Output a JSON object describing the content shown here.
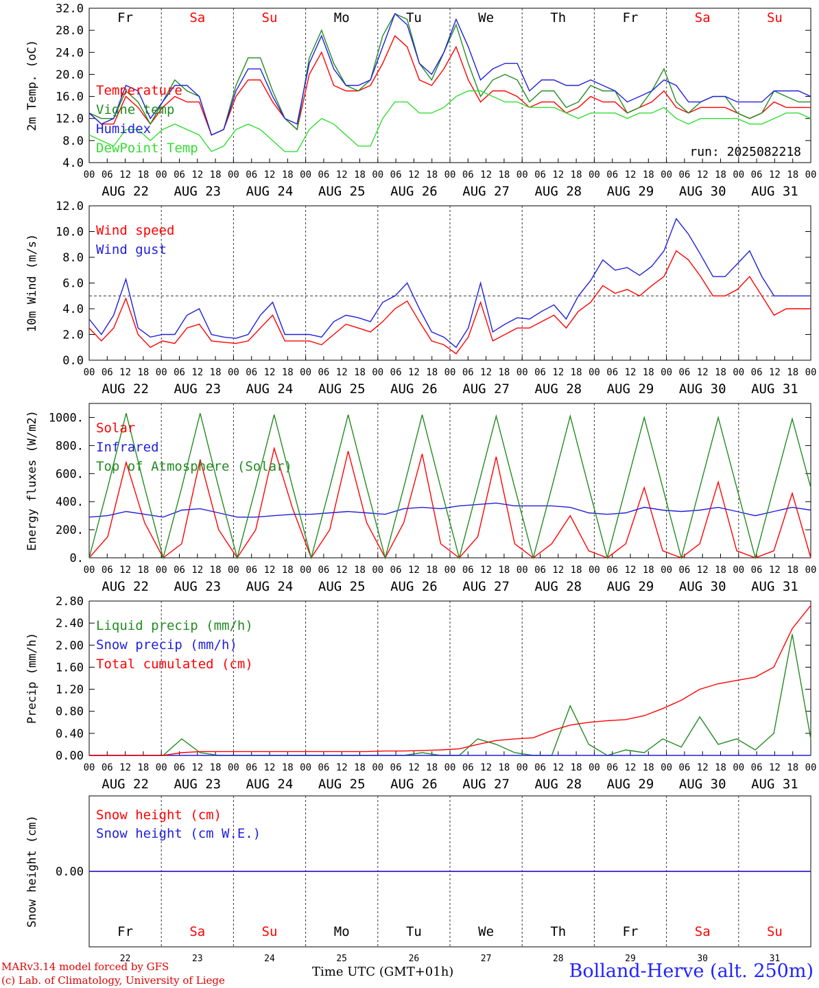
{
  "run_label": "run: 2025082218",
  "footer": {
    "credit_line1": "MARv3.14 model forced by GFS",
    "credit_line2": "(c) Lab. of Climatology, University of Liege",
    "time_label": "Time UTC (GMT+01h)",
    "station": "Bolland-Herve (alt. 250m)"
  },
  "colors": {
    "red": "#ff0000",
    "dark_green": "#228b22",
    "blue": "#1f1fdd",
    "light_green": "#33dd33",
    "grid": "#555555"
  },
  "days": [
    "AUG 22",
    "AUG 23",
    "AUG 24",
    "AUG 25",
    "AUG 26",
    "AUG 27",
    "AUG 28",
    "AUG 29",
    "AUG 30",
    "AUG 31"
  ],
  "weekdays": [
    "Fr",
    "Sa",
    "Su",
    "Mo",
    "Tu",
    "We",
    "Th",
    "Fr",
    "Sa",
    "Su"
  ],
  "weekend": [
    false,
    true,
    true,
    false,
    false,
    false,
    false,
    false,
    true,
    true
  ],
  "day_numbers": [
    "22",
    "23",
    "24",
    "25",
    "26",
    "27",
    "28",
    "29",
    "30",
    "31"
  ],
  "hour_ticks": [
    "00",
    "06",
    "12",
    "18"
  ],
  "chart_data": [
    {
      "type": "line",
      "id": "temp",
      "ylabel": "2m Temp. (oC)",
      "yticks": [
        "4.0",
        "8.0",
        "12.0",
        "16.0",
        "20.0",
        "24.0",
        "28.0",
        "32.0"
      ],
      "ylim": [
        4,
        32
      ],
      "x_unit": "days since AUG 22 00 UTC, 6-hourly",
      "series": [
        {
          "name": "Temperature",
          "color": "red",
          "values": [
            13,
            11,
            11,
            16,
            14,
            11,
            14,
            16,
            15,
            15,
            9,
            10,
            16,
            19,
            19,
            15,
            12,
            10,
            20,
            24,
            18,
            17,
            17,
            18,
            22,
            27,
            25,
            19,
            18,
            21,
            25,
            19,
            15,
            17,
            17,
            16,
            14,
            15,
            15,
            13,
            14,
            16,
            15,
            15,
            13,
            14,
            15,
            17,
            14,
            13,
            14,
            14,
            14,
            13,
            12,
            13,
            15,
            14,
            14,
            14
          ]
        },
        {
          "name": "Vigne temp",
          "color": "dark_green",
          "values": [
            13,
            12,
            12,
            17,
            15,
            11,
            15,
            19,
            17,
            16,
            9,
            10,
            18,
            23,
            23,
            17,
            12,
            10,
            23,
            28,
            22,
            18,
            17,
            19,
            27,
            31,
            30,
            22,
            19,
            24,
            29,
            22,
            16,
            19,
            20,
            19,
            15,
            17,
            17,
            14,
            15,
            18,
            17,
            17,
            13,
            14,
            17,
            21,
            15,
            13,
            15,
            16,
            16,
            13,
            12,
            13,
            17,
            16,
            15,
            15
          ]
        },
        {
          "name": "Humidex",
          "color": "blue",
          "values": [
            13,
            11,
            12,
            18,
            17,
            12,
            15,
            18,
            18,
            16,
            9,
            10,
            17,
            21,
            21,
            16,
            12,
            11,
            22,
            27,
            21,
            18,
            18,
            19,
            25,
            31,
            29,
            22,
            20,
            24,
            30,
            25,
            19,
            21,
            22,
            22,
            17,
            19,
            19,
            18,
            18,
            19,
            18,
            17,
            15,
            16,
            17,
            19,
            18,
            15,
            15,
            16,
            16,
            15,
            15,
            15,
            17,
            17,
            17,
            16
          ]
        },
        {
          "name": "DewPoint Temp",
          "color": "light_green",
          "values": [
            9,
            8,
            7,
            10,
            10,
            8,
            10,
            11,
            10,
            9,
            6,
            7,
            10,
            11,
            10,
            8,
            6,
            6,
            10,
            12,
            11,
            9,
            7,
            7,
            12,
            15,
            15,
            13,
            13,
            14,
            16,
            17,
            17,
            16,
            15,
            15,
            14,
            14,
            14,
            13,
            12,
            13,
            13,
            13,
            12,
            13,
            13,
            14,
            12,
            11,
            12,
            12,
            12,
            12,
            11,
            11,
            12,
            13,
            13,
            12
          ]
        }
      ]
    },
    {
      "type": "line",
      "id": "wind",
      "ylabel": "10m Wind (m/s)",
      "yticks": [
        "0.0",
        "2.0",
        "4.0",
        "6.0",
        "8.0",
        "10.0",
        "12.0"
      ],
      "ylim": [
        0,
        12
      ],
      "reference_line": 5,
      "x_unit": "days since AUG 22 00 UTC, 6-hourly",
      "series": [
        {
          "name": "Wind speed",
          "color": "red",
          "values": [
            2.5,
            1.5,
            2.5,
            4.8,
            2,
            1,
            1.5,
            1.3,
            2.5,
            2.8,
            1.5,
            1.4,
            1.3,
            1.5,
            2.5,
            3.5,
            1.5,
            1.5,
            1.5,
            1.2,
            2,
            2.8,
            2.5,
            2.2,
            3,
            4,
            4.6,
            3,
            1.5,
            1.2,
            0.5,
            1.8,
            4.5,
            1.5,
            2,
            2.5,
            2.5,
            3,
            3.5,
            2.5,
            3.8,
            4.5,
            5.8,
            5.2,
            5.5,
            5,
            5.8,
            6.5,
            8.5,
            7.8,
            6.5,
            5,
            5,
            5.5,
            6.5,
            5,
            3.5,
            4,
            4,
            4
          ]
        },
        {
          "name": "Wind gust",
          "color": "blue",
          "values": [
            3.2,
            2,
            3.5,
            6.3,
            2.5,
            1.8,
            2,
            2,
            3.5,
            4,
            2,
            1.8,
            1.7,
            2,
            3.5,
            4.5,
            2,
            2,
            2,
            1.8,
            3,
            3.5,
            3.3,
            3,
            4.5,
            5,
            6,
            4,
            2.2,
            1.8,
            1,
            2.5,
            6,
            2.2,
            2.8,
            3.3,
            3.2,
            3.8,
            4.3,
            3.2,
            5,
            6.2,
            7.8,
            7,
            7.2,
            6.6,
            7.3,
            8.5,
            11,
            9.8,
            8.2,
            6.5,
            6.5,
            7.5,
            8.5,
            6.5,
            5,
            5,
            5,
            5
          ]
        }
      ]
    },
    {
      "type": "line",
      "id": "energy",
      "ylabel": "Energy fluxes (W/m2)",
      "yticks": [
        "0.",
        "200.",
        "400.",
        "600.",
        "800.",
        "1000."
      ],
      "ylim": [
        0,
        1100
      ],
      "x_unit": "days since AUG 22 00 UTC, 6-hourly",
      "series": [
        {
          "name": "Solar",
          "color": "red",
          "values": [
            0,
            150,
            680,
            250,
            0,
            100,
            700,
            200,
            0,
            200,
            780,
            350,
            0,
            200,
            760,
            250,
            0,
            250,
            740,
            100,
            0,
            150,
            720,
            100,
            0,
            100,
            300,
            50,
            0,
            100,
            500,
            50,
            0,
            100,
            540,
            50,
            0,
            50,
            460,
            0
          ]
        },
        {
          "name": "Infrared",
          "color": "blue",
          "values": [
            290,
            300,
            330,
            310,
            290,
            340,
            350,
            320,
            290,
            290,
            300,
            310,
            310,
            320,
            330,
            320,
            310,
            350,
            360,
            350,
            370,
            380,
            390,
            370,
            370,
            370,
            360,
            320,
            310,
            320,
            360,
            340,
            330,
            340,
            360,
            330,
            300,
            330,
            360,
            340
          ]
        },
        {
          "name": "Top of Atmosphere (Solar)",
          "color": "dark_green",
          "values": [
            0,
            500,
            1030,
            500,
            0,
            500,
            1030,
            500,
            0,
            500,
            1020,
            500,
            0,
            500,
            1020,
            500,
            0,
            500,
            1020,
            500,
            0,
            500,
            1010,
            500,
            0,
            500,
            1010,
            500,
            0,
            500,
            1000,
            500,
            0,
            500,
            1000,
            500,
            0,
            500,
            990,
            500
          ]
        }
      ]
    },
    {
      "type": "line",
      "id": "precip",
      "ylabel": "Precip (mm/h)",
      "yticks": [
        "0.00",
        "0.40",
        "0.80",
        "1.20",
        "1.60",
        "2.00",
        "2.40",
        "2.80"
      ],
      "ylim": [
        0,
        2.8
      ],
      "x_unit": "days since AUG 22 00 UTC, 6-hourly",
      "series": [
        {
          "name": "Liquid precip (mm/h)",
          "color": "dark_green",
          "values": [
            0,
            0,
            0,
            0,
            0,
            0.3,
            0.05,
            0,
            0,
            0,
            0,
            0,
            0,
            0,
            0,
            0,
            0,
            0,
            0.05,
            0,
            0,
            0.3,
            0.2,
            0.05,
            0,
            0,
            0.9,
            0.2,
            0,
            0.1,
            0.05,
            0.3,
            0.15,
            0.7,
            0.2,
            0.3,
            0.1,
            0.4,
            2.2,
            0.3
          ]
        },
        {
          "name": "Snow precip (mm/h)",
          "color": "blue",
          "values": [
            0,
            0,
            0,
            0,
            0,
            0,
            0,
            0,
            0,
            0,
            0,
            0,
            0,
            0,
            0,
            0,
            0,
            0,
            0,
            0,
            0,
            0,
            0,
            0,
            0,
            0,
            0,
            0,
            0,
            0,
            0,
            0,
            0,
            0,
            0,
            0,
            0,
            0,
            0,
            0
          ]
        },
        {
          "name": "Total cumulated (cm)",
          "color": "red",
          "values": [
            0,
            0,
            0,
            0,
            0,
            0.05,
            0.07,
            0.07,
            0.07,
            0.07,
            0.07,
            0.07,
            0.07,
            0.07,
            0.07,
            0.07,
            0.08,
            0.08,
            0.09,
            0.1,
            0.12,
            0.2,
            0.27,
            0.3,
            0.32,
            0.45,
            0.55,
            0.6,
            0.63,
            0.65,
            0.72,
            0.85,
            1.0,
            1.2,
            1.3,
            1.36,
            1.42,
            1.6,
            2.3,
            2.72
          ]
        }
      ]
    },
    {
      "type": "line",
      "id": "snow",
      "ylabel": "Snow height (cm)",
      "yticks": [
        "0.00"
      ],
      "ylim": [
        -1,
        1
      ],
      "x_unit": "days since AUG 22 00 UTC, 6-hourly",
      "series": [
        {
          "name": "Snow height (cm)",
          "color": "red",
          "values": [
            0,
            0,
            0,
            0,
            0,
            0,
            0,
            0,
            0,
            0,
            0,
            0,
            0,
            0,
            0,
            0,
            0,
            0,
            0,
            0,
            0,
            0,
            0,
            0,
            0,
            0,
            0,
            0,
            0,
            0,
            0,
            0,
            0,
            0,
            0,
            0,
            0,
            0,
            0,
            0
          ]
        },
        {
          "name": "Snow height (cm W.E.)",
          "color": "blue",
          "values": [
            0,
            0,
            0,
            0,
            0,
            0,
            0,
            0,
            0,
            0,
            0,
            0,
            0,
            0,
            0,
            0,
            0,
            0,
            0,
            0,
            0,
            0,
            0,
            0,
            0,
            0,
            0,
            0,
            0,
            0,
            0,
            0,
            0,
            0,
            0,
            0,
            0,
            0,
            0,
            0
          ]
        }
      ]
    }
  ]
}
